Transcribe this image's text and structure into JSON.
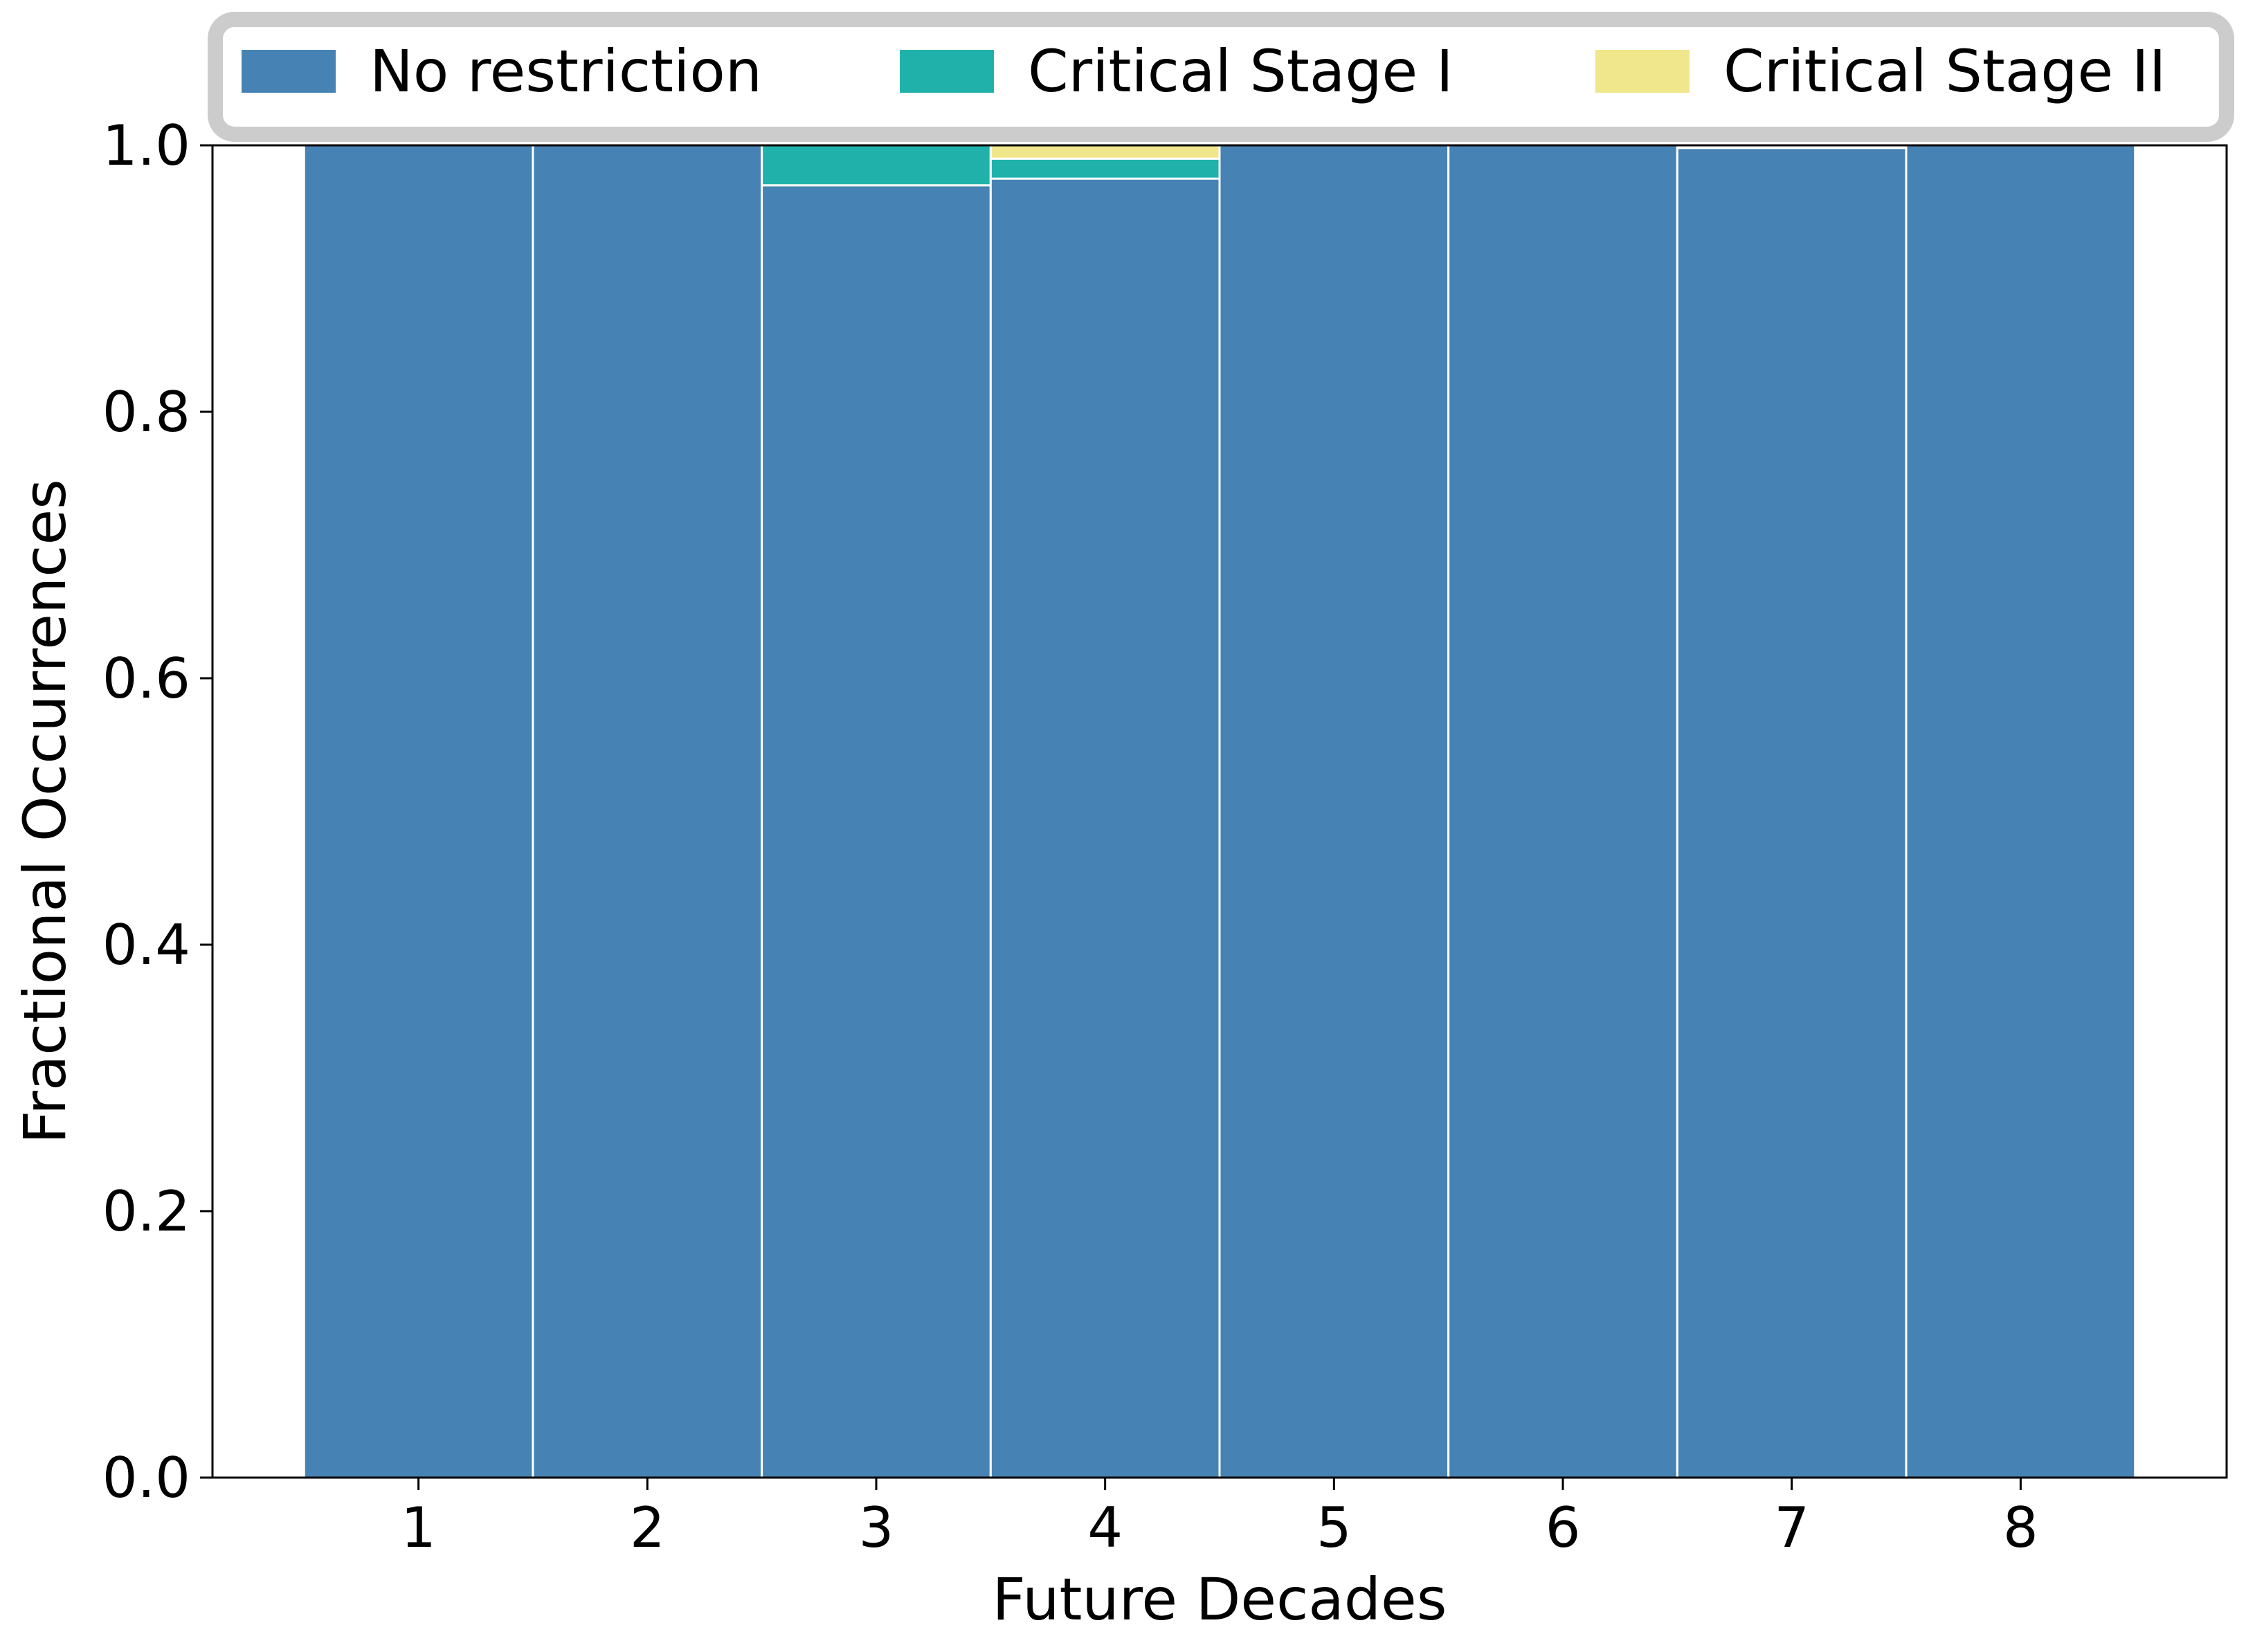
{
  "chart_data": {
    "type": "bar",
    "stacked": true,
    "categories": [
      "1",
      "2",
      "3",
      "4",
      "5",
      "6",
      "7",
      "8"
    ],
    "series": [
      {
        "name": "No restriction",
        "color": "#4682B4",
        "values": [
          1.0,
          1.0,
          0.97,
          0.975,
          1.0,
          1.0,
          0.998,
          1.0
        ]
      },
      {
        "name": "Critical Stage I",
        "color": "#20B2AA",
        "values": [
          0.0,
          0.0,
          0.03,
          0.015,
          0.0,
          0.0,
          0.0,
          0.0
        ]
      },
      {
        "name": "Critical Stage II",
        "color": "#F0E68C",
        "values": [
          0.0,
          0.0,
          0.0,
          0.01,
          0.0,
          0.0,
          0.0,
          0.0
        ]
      }
    ],
    "xlabel": "Future Decades",
    "ylabel": "Fractional Occurrences",
    "ylim": [
      0,
      1.0
    ],
    "yticks": [
      "0.0",
      "0.2",
      "0.4",
      "0.6",
      "0.8",
      "1.0"
    ],
    "grid": false,
    "legend": "top"
  }
}
